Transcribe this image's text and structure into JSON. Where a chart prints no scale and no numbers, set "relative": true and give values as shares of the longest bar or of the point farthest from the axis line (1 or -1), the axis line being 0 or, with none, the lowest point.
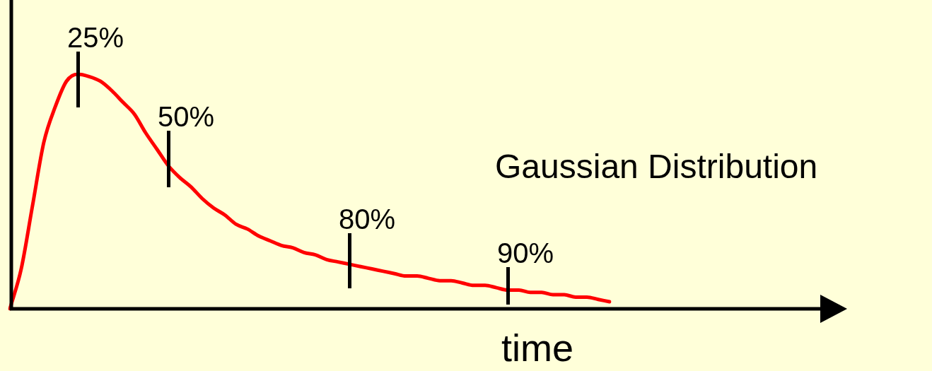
{
  "chart_data": {
    "type": "line",
    "relative": true,
    "xlabel": "time",
    "tick_labels": false,
    "grid": false,
    "legend": false,
    "marker": "none",
    "line_style": "solid",
    "categories": [
      null,
      null,
      null,
      null,
      null,
      null,
      null,
      null,
      null,
      null,
      null,
      null,
      null,
      null,
      null,
      null,
      null,
      null,
      null,
      null,
      null,
      null,
      null,
      null,
      null,
      null,
      null,
      null,
      null,
      null,
      null,
      null,
      null,
      null,
      null,
      null,
      null,
      null,
      null,
      null,
      null,
      null,
      null,
      null,
      null,
      null,
      null,
      null,
      null,
      null,
      null,
      null,
      null,
      null
    ],
    "series": [
      {
        "color": "#ff0000",
        "values": [
          0,
          0.17,
          0.44,
          0.71,
          0.86,
          0.97,
          1,
          0.99,
          0.97,
          0.93,
          0.88,
          0.83,
          0.75,
          0.68,
          0.61,
          0.56,
          0.52,
          0.47,
          0.43,
          0.4,
          0.36,
          0.34,
          0.31,
          0.29,
          0.27,
          0.26,
          0.24,
          0.23,
          0.21,
          0.2,
          0.19,
          0.18,
          0.17,
          0.16,
          0.15,
          0.14,
          0.14,
          0.13,
          0.12,
          0.12,
          0.11,
          0.1,
          0.1,
          0.09,
          0.08,
          0.08,
          0.07,
          0.07,
          0.06,
          0.06,
          0.05,
          0.05,
          0.04,
          0.03
        ]
      }
    ],
    "annotations": [
      "25%",
      "50%",
      "80%",
      "90%",
      "Gaussian Distribution"
    ]
  }
}
